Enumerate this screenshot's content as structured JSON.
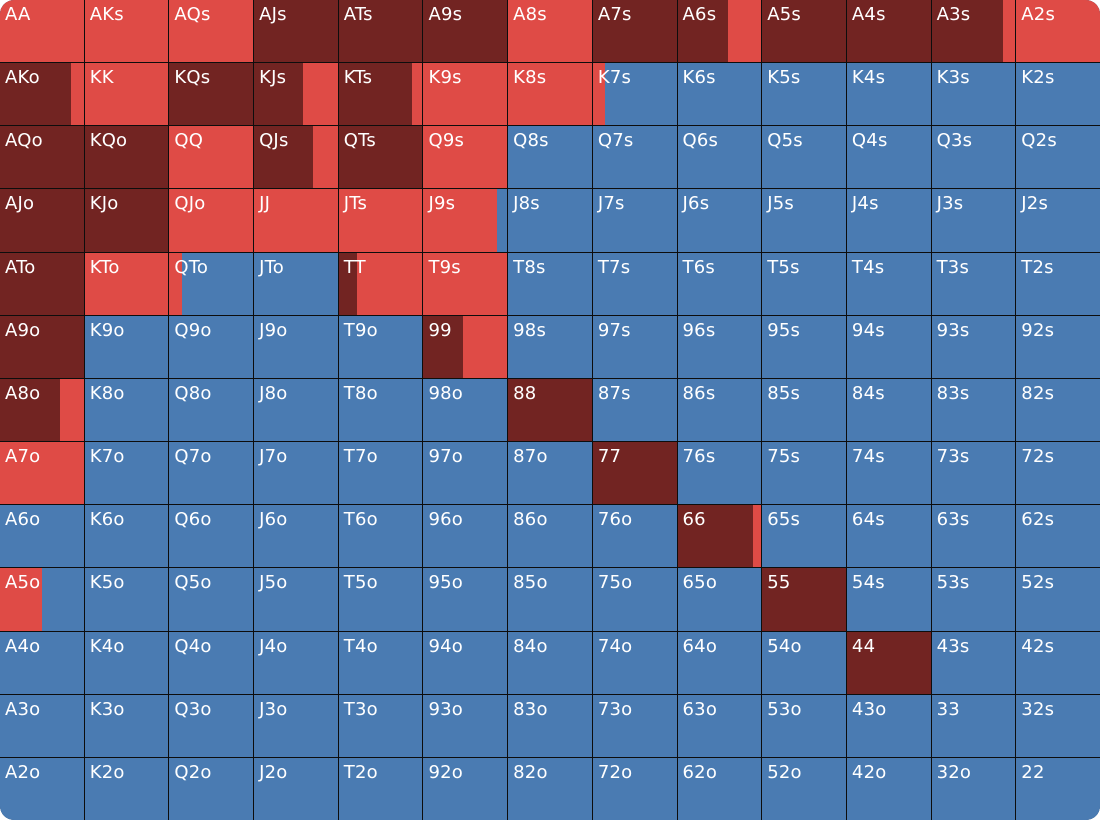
{
  "colors": {
    "raise": "#722422",
    "call": "#df4b46",
    "fold": "#4a7bb2"
  },
  "grid": {
    "rows": [
      [
        [
          "AA",
          0,
          1,
          0
        ],
        [
          "AKs",
          0,
          1,
          0
        ],
        [
          "AQs",
          0,
          1,
          0
        ],
        [
          "AJs",
          1,
          0,
          0
        ],
        [
          "ATs",
          1,
          0,
          0
        ],
        [
          "A9s",
          1,
          0,
          0
        ],
        [
          "A8s",
          0,
          1,
          0
        ],
        [
          "A7s",
          1,
          0,
          0
        ],
        [
          "A6s",
          0.6,
          0.4,
          0
        ],
        [
          "A5s",
          1,
          0,
          0
        ],
        [
          "A4s",
          1,
          0,
          0
        ],
        [
          "A3s",
          0.85,
          0.15,
          0
        ],
        [
          "A2s",
          0,
          1,
          0
        ]
      ],
      [
        [
          "AKo",
          0.85,
          0.15,
          0
        ],
        [
          "KK",
          0,
          1,
          0
        ],
        [
          "KQs",
          1,
          0,
          0
        ],
        [
          "KJs",
          0.58,
          0.42,
          0
        ],
        [
          "KTs",
          0.88,
          0.12,
          0
        ],
        [
          "K9s",
          0,
          1,
          0
        ],
        [
          "K8s",
          0,
          1,
          0
        ],
        [
          "K7s",
          0,
          0.15,
          0.85
        ],
        [
          "K6s",
          0,
          0,
          1
        ],
        [
          "K5s",
          0,
          0,
          1
        ],
        [
          "K4s",
          0,
          0,
          1
        ],
        [
          "K3s",
          0,
          0,
          1
        ],
        [
          "K2s",
          0,
          0,
          1
        ]
      ],
      [
        [
          "AQo",
          1,
          0,
          0
        ],
        [
          "KQo",
          1,
          0,
          0
        ],
        [
          "QQ",
          0,
          1,
          0
        ],
        [
          "QJs",
          0.7,
          0.3,
          0
        ],
        [
          "QTs",
          1,
          0,
          0
        ],
        [
          "Q9s",
          0,
          1,
          0
        ],
        [
          "Q8s",
          0,
          0,
          1
        ],
        [
          "Q7s",
          0,
          0,
          1
        ],
        [
          "Q6s",
          0,
          0,
          1
        ],
        [
          "Q5s",
          0,
          0,
          1
        ],
        [
          "Q4s",
          0,
          0,
          1
        ],
        [
          "Q3s",
          0,
          0,
          1
        ],
        [
          "Q2s",
          0,
          0,
          1
        ]
      ],
      [
        [
          "AJo",
          1,
          0,
          0
        ],
        [
          "KJo",
          1,
          0,
          0
        ],
        [
          "QJo",
          0,
          1,
          0
        ],
        [
          "JJ",
          0,
          1,
          0
        ],
        [
          "JTs",
          0,
          1,
          0
        ],
        [
          "J9s",
          0,
          0.88,
          0.12
        ],
        [
          "J8s",
          0,
          0,
          1
        ],
        [
          "J7s",
          0,
          0,
          1
        ],
        [
          "J6s",
          0,
          0,
          1
        ],
        [
          "J5s",
          0,
          0,
          1
        ],
        [
          "J4s",
          0,
          0,
          1
        ],
        [
          "J3s",
          0,
          0,
          1
        ],
        [
          "J2s",
          0,
          0,
          1
        ]
      ],
      [
        [
          "ATo",
          1,
          0,
          0
        ],
        [
          "KTo",
          0,
          1,
          0
        ],
        [
          "QTo",
          0,
          0.15,
          0.85
        ],
        [
          "JTo",
          0,
          0,
          1
        ],
        [
          "TT",
          0.22,
          0.78,
          0
        ],
        [
          "T9s",
          0,
          1,
          0
        ],
        [
          "T8s",
          0,
          0,
          1
        ],
        [
          "T7s",
          0,
          0,
          1
        ],
        [
          "T6s",
          0,
          0,
          1
        ],
        [
          "T5s",
          0,
          0,
          1
        ],
        [
          "T4s",
          0,
          0,
          1
        ],
        [
          "T3s",
          0,
          0,
          1
        ],
        [
          "T2s",
          0,
          0,
          1
        ]
      ],
      [
        [
          "A9o",
          1,
          0,
          0
        ],
        [
          "K9o",
          0,
          0,
          1
        ],
        [
          "Q9o",
          0,
          0,
          1
        ],
        [
          "J9o",
          0,
          0,
          1
        ],
        [
          "T9o",
          0,
          0,
          1
        ],
        [
          "99",
          0.47,
          0.53,
          0
        ],
        [
          "98s",
          0,
          0,
          1
        ],
        [
          "97s",
          0,
          0,
          1
        ],
        [
          "96s",
          0,
          0,
          1
        ],
        [
          "95s",
          0,
          0,
          1
        ],
        [
          "94s",
          0,
          0,
          1
        ],
        [
          "93s",
          0,
          0,
          1
        ],
        [
          "92s",
          0,
          0,
          1
        ]
      ],
      [
        [
          "A8o",
          0.72,
          0.28,
          0
        ],
        [
          "K8o",
          0,
          0,
          1
        ],
        [
          "Q8o",
          0,
          0,
          1
        ],
        [
          "J8o",
          0,
          0,
          1
        ],
        [
          "T8o",
          0,
          0,
          1
        ],
        [
          "98o",
          0,
          0,
          1
        ],
        [
          "88",
          1,
          0,
          0
        ],
        [
          "87s",
          0,
          0,
          1
        ],
        [
          "86s",
          0,
          0,
          1
        ],
        [
          "85s",
          0,
          0,
          1
        ],
        [
          "84s",
          0,
          0,
          1
        ],
        [
          "83s",
          0,
          0,
          1
        ],
        [
          "82s",
          0,
          0,
          1
        ]
      ],
      [
        [
          "A7o",
          0,
          1,
          0
        ],
        [
          "K7o",
          0,
          0,
          1
        ],
        [
          "Q7o",
          0,
          0,
          1
        ],
        [
          "J7o",
          0,
          0,
          1
        ],
        [
          "T7o",
          0,
          0,
          1
        ],
        [
          "97o",
          0,
          0,
          1
        ],
        [
          "87o",
          0,
          0,
          1
        ],
        [
          "77",
          1,
          0,
          0
        ],
        [
          "76s",
          0,
          0,
          1
        ],
        [
          "75s",
          0,
          0,
          1
        ],
        [
          "74s",
          0,
          0,
          1
        ],
        [
          "73s",
          0,
          0,
          1
        ],
        [
          "72s",
          0,
          0,
          1
        ]
      ],
      [
        [
          "A6o",
          0,
          0,
          1
        ],
        [
          "K6o",
          0,
          0,
          1
        ],
        [
          "Q6o",
          0,
          0,
          1
        ],
        [
          "J6o",
          0,
          0,
          1
        ],
        [
          "T6o",
          0,
          0,
          1
        ],
        [
          "96o",
          0,
          0,
          1
        ],
        [
          "86o",
          0,
          0,
          1
        ],
        [
          "76o",
          0,
          0,
          1
        ],
        [
          "66",
          0.9,
          0.1,
          0
        ],
        [
          "65s",
          0,
          0,
          1
        ],
        [
          "64s",
          0,
          0,
          1
        ],
        [
          "63s",
          0,
          0,
          1
        ],
        [
          "62s",
          0,
          0,
          1
        ]
      ],
      [
        [
          "A5o",
          0,
          0.5,
          0.5
        ],
        [
          "K5o",
          0,
          0,
          1
        ],
        [
          "Q5o",
          0,
          0,
          1
        ],
        [
          "J5o",
          0,
          0,
          1
        ],
        [
          "T5o",
          0,
          0,
          1
        ],
        [
          "95o",
          0,
          0,
          1
        ],
        [
          "85o",
          0,
          0,
          1
        ],
        [
          "75o",
          0,
          0,
          1
        ],
        [
          "65o",
          0,
          0,
          1
        ],
        [
          "55",
          1,
          0,
          0
        ],
        [
          "54s",
          0,
          0,
          1
        ],
        [
          "53s",
          0,
          0,
          1
        ],
        [
          "52s",
          0,
          0,
          1
        ]
      ],
      [
        [
          "A4o",
          0,
          0,
          1
        ],
        [
          "K4o",
          0,
          0,
          1
        ],
        [
          "Q4o",
          0,
          0,
          1
        ],
        [
          "J4o",
          0,
          0,
          1
        ],
        [
          "T4o",
          0,
          0,
          1
        ],
        [
          "94o",
          0,
          0,
          1
        ],
        [
          "84o",
          0,
          0,
          1
        ],
        [
          "74o",
          0,
          0,
          1
        ],
        [
          "64o",
          0,
          0,
          1
        ],
        [
          "54o",
          0,
          0,
          1
        ],
        [
          "44",
          1,
          0,
          0
        ],
        [
          "43s",
          0,
          0,
          1
        ],
        [
          "42s",
          0,
          0,
          1
        ]
      ],
      [
        [
          "A3o",
          0,
          0,
          1
        ],
        [
          "K3o",
          0,
          0,
          1
        ],
        [
          "Q3o",
          0,
          0,
          1
        ],
        [
          "J3o",
          0,
          0,
          1
        ],
        [
          "T3o",
          0,
          0,
          1
        ],
        [
          "93o",
          0,
          0,
          1
        ],
        [
          "83o",
          0,
          0,
          1
        ],
        [
          "73o",
          0,
          0,
          1
        ],
        [
          "63o",
          0,
          0,
          1
        ],
        [
          "53o",
          0,
          0,
          1
        ],
        [
          "43o",
          0,
          0,
          1
        ],
        [
          "33",
          0,
          0,
          1
        ],
        [
          "32s",
          0,
          0,
          1
        ]
      ],
      [
        [
          "A2o",
          0,
          0,
          1
        ],
        [
          "K2o",
          0,
          0,
          1
        ],
        [
          "Q2o",
          0,
          0,
          1
        ],
        [
          "J2o",
          0,
          0,
          1
        ],
        [
          "T2o",
          0,
          0,
          1
        ],
        [
          "92o",
          0,
          0,
          1
        ],
        [
          "82o",
          0,
          0,
          1
        ],
        [
          "72o",
          0,
          0,
          1
        ],
        [
          "62o",
          0,
          0,
          1
        ],
        [
          "52o",
          0,
          0,
          1
        ],
        [
          "42o",
          0,
          0,
          1
        ],
        [
          "32o",
          0,
          0,
          1
        ],
        [
          "22",
          0,
          0,
          1
        ]
      ]
    ]
  }
}
